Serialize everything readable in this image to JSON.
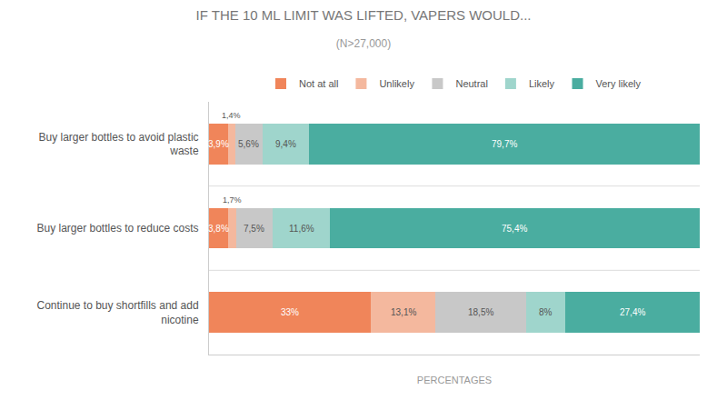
{
  "chart_data": {
    "type": "bar",
    "orientation": "horizontal",
    "stacked": true,
    "title": "IF THE 10 ML LIMIT WAS LIFTED, VAPERS WOULD...",
    "subtitle": "(N>27,000)",
    "xlabel": "PERCENTAGES",
    "categories": [
      "Buy larger bottles to avoid plastic\nwaste",
      "Buy larger bottles to reduce costs",
      "Continue to buy shortfills and add\nnicotine"
    ],
    "series": [
      {
        "name": "Not at all",
        "color": "#f0855a",
        "values": [
          3.9,
          3.8,
          33.0
        ],
        "value_labels": [
          "3,9%",
          "3,8%",
          "33%"
        ]
      },
      {
        "name": "Unlikely",
        "color": "#f4b89e",
        "values": [
          1.4,
          1.7,
          13.1
        ],
        "value_labels": [
          "1,4%",
          "1,7%",
          "13,1%"
        ]
      },
      {
        "name": "Neutral",
        "color": "#c8c8c8",
        "values": [
          5.6,
          7.5,
          18.5
        ],
        "value_labels": [
          "5,6%",
          "7,5%",
          "18,5%"
        ]
      },
      {
        "name": "Likely",
        "color": "#9fd5cc",
        "values": [
          9.4,
          11.6,
          8.0
        ],
        "value_labels": [
          "9,4%",
          "11,6%",
          "8%"
        ]
      },
      {
        "name": "Very likely",
        "color": "#4aada0",
        "values": [
          79.7,
          75.4,
          27.4
        ],
        "value_labels": [
          "79,7%",
          "75,4%",
          "27,4%"
        ]
      }
    ],
    "xlim": [
      0,
      100
    ],
    "xticks": [],
    "tick_labels": "y",
    "data_labels": true,
    "legend": "top",
    "grid": false
  }
}
